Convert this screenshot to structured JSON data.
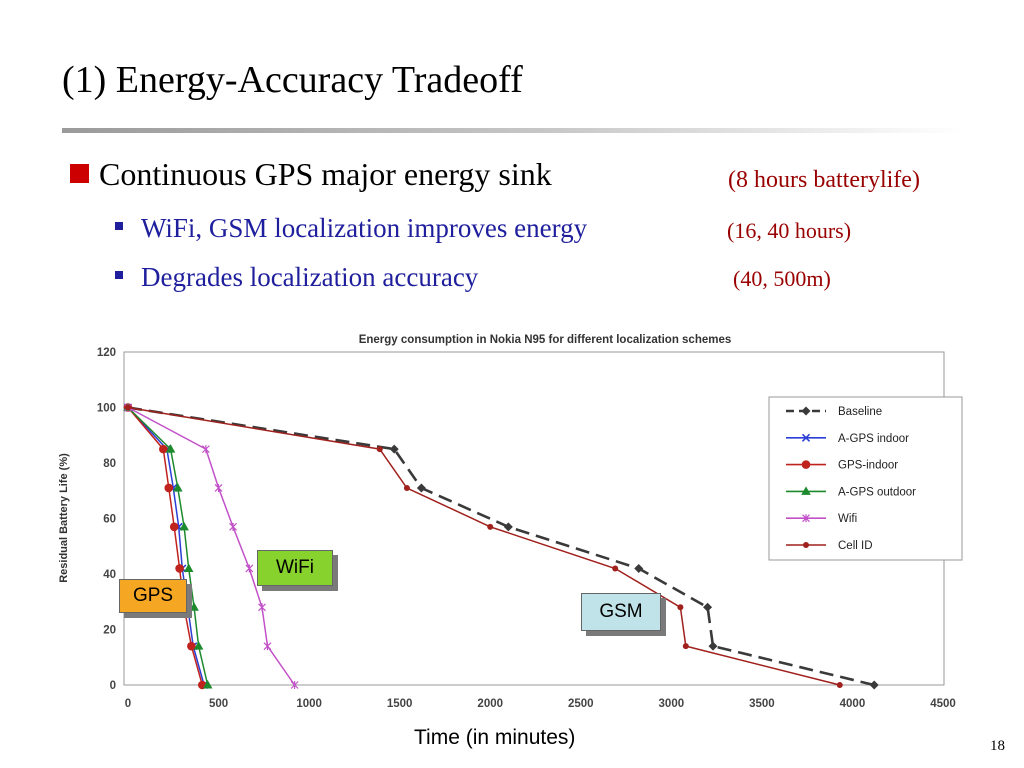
{
  "slide": {
    "title": "(1) Energy-Accuracy Tradeoff",
    "bullet": "Continuous GPS major energy sink",
    "bullet_note": "(8 hours batterylife)",
    "sub_bullets": [
      {
        "text": "WiFi, GSM localization improves energy",
        "note": "(16, 40 hours)"
      },
      {
        "text": "Degrades localization accuracy",
        "note": "(40, 500m)"
      }
    ],
    "x_caption": "Time (in minutes)",
    "page_number": "18",
    "callouts": {
      "gps": "GPS",
      "wifi": "WiFi",
      "gsm": "GSM"
    }
  },
  "chart_data": {
    "type": "line",
    "title": "Energy consumption in Nokia N95 for different localization schemes",
    "xlabel": "",
    "ylabel": "Residual Battery Life (%)",
    "xlim": [
      0,
      4500
    ],
    "ylim": [
      0,
      120
    ],
    "xticks": [
      0,
      500,
      1000,
      1500,
      2000,
      2500,
      3000,
      3500,
      4000,
      4500
    ],
    "yticks": [
      0,
      20,
      40,
      60,
      80,
      100,
      120
    ],
    "grid": false,
    "legend_position": "right",
    "series": [
      {
        "name": "Baseline",
        "color": "#3a3a3a",
        "marker": "diamond",
        "dash": true,
        "points": [
          [
            0,
            100
          ],
          [
            1470,
            85
          ],
          [
            1620,
            71
          ],
          [
            2100,
            57
          ],
          [
            2820,
            42
          ],
          [
            3200,
            28
          ],
          [
            3230,
            14
          ],
          [
            4120,
            0
          ]
        ]
      },
      {
        "name": "A-GPS indoor",
        "color": "#2b3fd6",
        "marker": "x",
        "dash": false,
        "points": [
          [
            0,
            100
          ],
          [
            215,
            85
          ],
          [
            250,
            71
          ],
          [
            280,
            57
          ],
          [
            300,
            42
          ],
          [
            330,
            28
          ],
          [
            360,
            14
          ],
          [
            420,
            0
          ]
        ]
      },
      {
        "name": "GPS-indoor",
        "color": "#c0221e",
        "marker": "circle",
        "dash": false,
        "points": [
          [
            0,
            100
          ],
          [
            195,
            85
          ],
          [
            225,
            71
          ],
          [
            255,
            57
          ],
          [
            285,
            42
          ],
          [
            310,
            28
          ],
          [
            350,
            14
          ],
          [
            410,
            0
          ]
        ]
      },
      {
        "name": "A-GPS outdoor",
        "color": "#1e8a2e",
        "marker": "triangle",
        "dash": false,
        "points": [
          [
            0,
            100
          ],
          [
            235,
            85
          ],
          [
            275,
            71
          ],
          [
            310,
            57
          ],
          [
            335,
            42
          ],
          [
            365,
            28
          ],
          [
            390,
            14
          ],
          [
            440,
            0
          ]
        ]
      },
      {
        "name": "Wifi",
        "color": "#c251c8",
        "marker": "star",
        "dash": false,
        "points": [
          [
            0,
            100
          ],
          [
            430,
            85
          ],
          [
            500,
            71
          ],
          [
            580,
            57
          ],
          [
            670,
            42
          ],
          [
            740,
            28
          ],
          [
            770,
            14
          ],
          [
            920,
            0
          ]
        ]
      },
      {
        "name": "Cell ID",
        "color": "#a0201c",
        "marker": "dot",
        "dash": false,
        "points": [
          [
            0,
            100
          ],
          [
            1390,
            85
          ],
          [
            1540,
            71
          ],
          [
            2000,
            57
          ],
          [
            2690,
            42
          ],
          [
            3050,
            28
          ],
          [
            3080,
            14
          ],
          [
            3930,
            0
          ]
        ]
      }
    ]
  }
}
